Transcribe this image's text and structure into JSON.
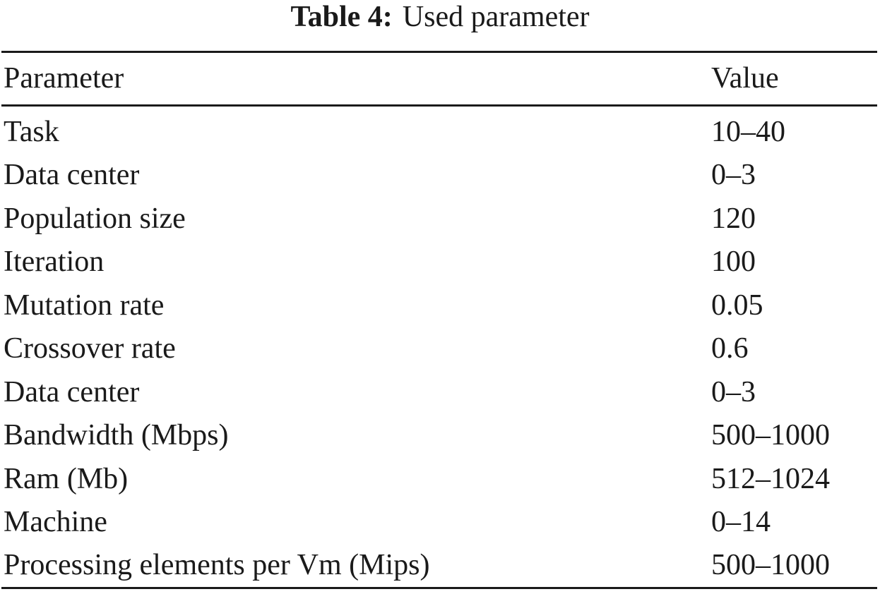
{
  "caption": {
    "label": "Table 4:",
    "text": "Used parameter"
  },
  "table": {
    "headers": {
      "parameter": "Parameter",
      "value": "Value"
    },
    "rows": [
      {
        "parameter": "Task",
        "value": "10–40"
      },
      {
        "parameter": "Data center",
        "value": "0–3"
      },
      {
        "parameter": "Population size",
        "value": "120"
      },
      {
        "parameter": "Iteration",
        "value": "100"
      },
      {
        "parameter": "Mutation rate",
        "value": "0.05"
      },
      {
        "parameter": "Crossover rate",
        "value": "0.6"
      },
      {
        "parameter": "Data center",
        "value": "0–3"
      },
      {
        "parameter": "Bandwidth (Mbps)",
        "value": "500–1000"
      },
      {
        "parameter": "Ram (Mb)",
        "value": "512–1024"
      },
      {
        "parameter": "Machine",
        "value": "0–14"
      },
      {
        "parameter": "Processing elements per Vm (Mips)",
        "value": "500–1000"
      }
    ]
  }
}
